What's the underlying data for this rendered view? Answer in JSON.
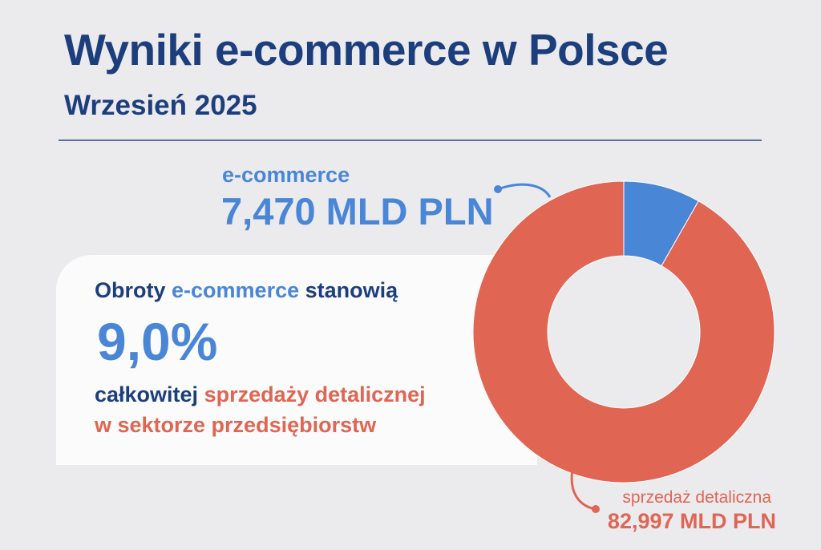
{
  "header": {
    "title": "Wyniki e-commerce w Polsce",
    "subtitle": "Wrzesień 2025"
  },
  "stat": {
    "line1_start": "Obroty ",
    "line1_accent": "e-commerce",
    "line1_end": " stanowią",
    "percent": "9,0%",
    "line2_start": "całkowitej ",
    "line2_accent": "sprzedaży detalicznej",
    "line3": "w sektorze przedsiębiorstw"
  },
  "colors": {
    "background": "#ebebee",
    "title": "#1d3e7d",
    "ecommerce": "#4a86d6",
    "retail": "#e06552",
    "card": "#fbfbfc"
  },
  "chart_data": {
    "type": "pie",
    "variant": "donut",
    "labels": [
      "e-commerce",
      "sprzedaż detaliczna"
    ],
    "values": [
      7.47,
      82.997
    ],
    "value_labels": [
      "7,470 MLD PLN",
      "82,997 MLD PLN"
    ],
    "colors": [
      "#4a86d6",
      "#e06552"
    ],
    "unit": "MLD PLN"
  }
}
